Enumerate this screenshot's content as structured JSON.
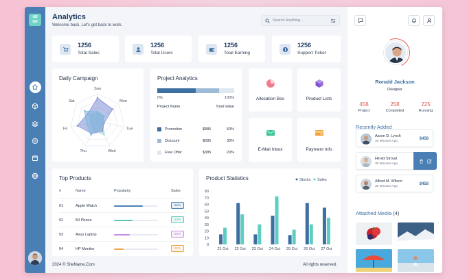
{
  "logo": {
    "line1": "AB",
    "line2": "QR"
  },
  "header": {
    "title": "Analytics",
    "subtitle": "Welcome back, Let's get back to work."
  },
  "search": {
    "placeholder": "Search Anything....",
    "value": ""
  },
  "stats": [
    {
      "value": "1256",
      "label": "Total Sales",
      "icon": "cart-icon"
    },
    {
      "value": "1256",
      "label": "Total Users",
      "icon": "user-icon"
    },
    {
      "value": "1256",
      "label": "Total Earning",
      "icon": "wallet-icon"
    },
    {
      "value": "1256",
      "label": "Support Ticket",
      "icon": "info-icon"
    }
  ],
  "daily_campaign": {
    "title": "Daily Campaign",
    "chart_data": {
      "type": "radar",
      "axes": [
        "Sun",
        "Mon",
        "Tue",
        "Wed",
        "Thu",
        "Fri",
        "Sat"
      ],
      "max": 1,
      "series": [
        {
          "values": [
            0.3,
            0.25,
            0.2,
            0.55,
            0.35,
            0.25,
            0.35
          ],
          "color": "#9ad7cf"
        },
        {
          "values": [
            0.85,
            0.7,
            0.25,
            0.4,
            0.5,
            0.75,
            0.45
          ],
          "color": "#7e8fd6"
        },
        {
          "values": [
            0.35,
            0.3,
            0.2,
            0.25,
            0.55,
            0.4,
            0.6
          ],
          "color": "#7fb8dc"
        }
      ]
    }
  },
  "project_analytics": {
    "title": "Project Analytics",
    "axis_min": "0%",
    "axis_max": "100%",
    "col_name": "Project Name",
    "col_value": "Total Value",
    "rows": [
      {
        "name": "Promotion",
        "amount": "$885",
        "percent": "50%",
        "share": 0.5,
        "color": "#3d6fa1"
      },
      {
        "name": "Discount",
        "amount": "$685",
        "percent": "30%",
        "share": 0.3,
        "color": "#9dbad6"
      },
      {
        "name": "Free Offer",
        "amount": "$385",
        "percent": "20%",
        "share": 0.2,
        "color": "#dfe7f0"
      }
    ]
  },
  "tiles": [
    {
      "label": "Allocation Box",
      "icon": "pie-icon"
    },
    {
      "label": "Product Lists",
      "icon": "cube-icon"
    },
    {
      "label": "E-Mail Inbox",
      "icon": "mail-icon"
    },
    {
      "label": "Payment Info",
      "icon": "card-icon"
    }
  ],
  "top_products": {
    "title": "Top Products",
    "headers": {
      "num": "#",
      "name": "Name",
      "popularity": "Popularity",
      "sales": "Sales"
    },
    "rows": [
      {
        "num": "01",
        "name": "Apple Watch",
        "popularity": 0.65,
        "sales": "65%",
        "color": "#4a7fb5"
      },
      {
        "num": "02",
        "name": "MI Phone",
        "popularity": 0.42,
        "sales": "42%",
        "color": "#5cc9b4"
      },
      {
        "num": "03",
        "name": "Asus Laptop",
        "popularity": 0.36,
        "sales": "36%",
        "color": "#c98be0"
      },
      {
        "num": "04",
        "name": "HP Monitor",
        "popularity": 0.22,
        "sales": "22%",
        "color": "#f0a24a"
      }
    ]
  },
  "product_statistics": {
    "title": "Product Statistics",
    "chart_data": {
      "type": "bar",
      "categories": [
        "21 Oct",
        "22 Oct",
        "23 Oct",
        "24 Oct",
        "25 Oct",
        "26 Oct",
        "27 Oct"
      ],
      "series": [
        {
          "name": "Stocks",
          "values": [
            15,
            62,
            15,
            43,
            14,
            62,
            55
          ],
          "color": "#3d6fa1"
        },
        {
          "name": "Sales",
          "values": [
            25,
            45,
            30,
            72,
            22,
            30,
            40
          ],
          "color": "#5fcdc2"
        }
      ],
      "yticks": [
        0,
        10,
        20,
        30,
        40,
        50,
        60,
        70,
        80
      ],
      "ylim": [
        0,
        80
      ],
      "legend": "top-right"
    }
  },
  "footer": {
    "left": "2024 © SiteName.Com",
    "right": "All rights reserved."
  },
  "profile": {
    "name": "Ronald Jackson",
    "role": "Designer",
    "stats": [
      {
        "value": "458",
        "label": "Project"
      },
      {
        "value": "258",
        "label": "Completed"
      },
      {
        "value": "225",
        "label": "Running"
      }
    ]
  },
  "recently_added": {
    "title": "Recently Added",
    "items": [
      {
        "name": "Aaron D. Lynch",
        "time": "30 Minutes Ago",
        "amount": "$458"
      },
      {
        "name": "Hirold Stroud",
        "time": "30 Minutes Ago",
        "amount": ""
      },
      {
        "name": "Alfred M. Wilson",
        "time": "30 Minutes Ago",
        "amount": "$458"
      }
    ]
  },
  "attached_media": {
    "title": "Attached Media",
    "count": "(4)"
  }
}
